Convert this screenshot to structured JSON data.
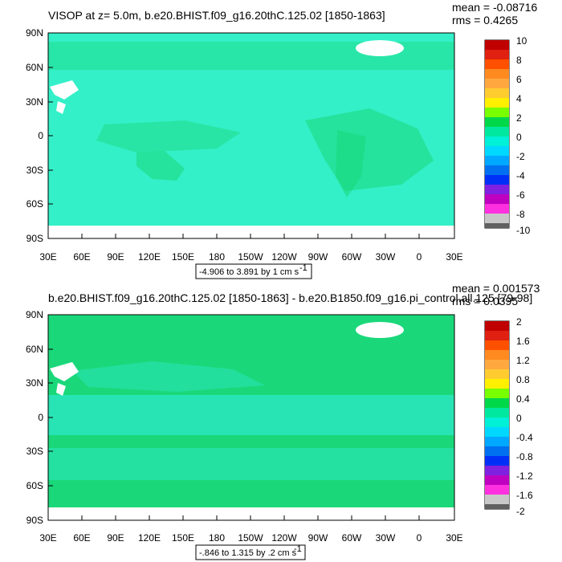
{
  "colors": {
    "frame": "#000000",
    "land": "#ffffff",
    "ocean_top": "#33f0c8",
    "ocean_bottom": "#2ee8c8",
    "ocean_main_top": "#00f2b4",
    "ocean_green": "#1ad87a"
  },
  "chart_data": [
    {
      "type": "heatmap",
      "title": "VISOP at z=   5.0m, b.e20.BHIST.f09_g16.20thC.125.02 [1850-1863]",
      "stats": [
        "mean = -0.08716",
        "rms = 0.4265"
      ],
      "xticks": [
        "30E",
        "60E",
        "90E",
        "120E",
        "150E",
        "180",
        "150W",
        "120W",
        "90W",
        "60W",
        "30W",
        "0",
        "30E"
      ],
      "yticks": [
        "90N",
        "60N",
        "30N",
        "0",
        "30S",
        "60S",
        "90S"
      ],
      "range_label": "-4.906 to 3.891 by 1 cm s",
      "range_sup": "-1",
      "legend": {
        "labels": [
          "10",
          "8",
          "6",
          "4",
          "2",
          "0",
          "-2",
          "-4",
          "-6",
          "-8",
          "-10"
        ],
        "colors": [
          "#c00000",
          "#e02010",
          "#ff5000",
          "#ff8a20",
          "#ffa840",
          "#ffcc30",
          "#fff000",
          "#78ff00",
          "#00d84a",
          "#00e8a0",
          "#00f0d8",
          "#00d8ff",
          "#00a8ff",
          "#0070f0",
          "#0030f8",
          "#8020e0",
          "#c000c0",
          "#ff30e0",
          "#c8c8c8",
          "#606060"
        ]
      },
      "dominant_value_range": [
        -2,
        0
      ],
      "land_mask": true
    },
    {
      "type": "heatmap",
      "title": "b.e20.BHIST.f09_g16.20thC.125.02 [1850-1863] - b.e20.B1850.f09_g16.pi_control.all.125 [79-98]",
      "stats": [
        "mean = 0.001573",
        "rms = 0.0395"
      ],
      "xticks": [
        "30E",
        "60E",
        "90E",
        "120E",
        "150E",
        "180",
        "150W",
        "120W",
        "90W",
        "60W",
        "30W",
        "0",
        "30E"
      ],
      "yticks": [
        "90N",
        "60N",
        "30N",
        "0",
        "30S",
        "60S",
        "90S"
      ],
      "range_label": "-.846 to 1.315 by .2 cm s",
      "range_sup": "-1",
      "legend": {
        "labels": [
          "2",
          "1.6",
          "1.2",
          "0.8",
          "0.4",
          "0",
          "-0.4",
          "-0.8",
          "-1.2",
          "-1.6",
          "-2"
        ],
        "colors": [
          "#c00000",
          "#e02010",
          "#ff5000",
          "#ff8a20",
          "#ffa840",
          "#ffcc30",
          "#fff000",
          "#78ff00",
          "#00d84a",
          "#00e8a0",
          "#00f0d8",
          "#00d8ff",
          "#00a8ff",
          "#0070f0",
          "#0030f8",
          "#8020e0",
          "#c000c0",
          "#ff30e0",
          "#c8c8c8",
          "#606060"
        ]
      },
      "dominant_value_range": [
        -0.4,
        0.4
      ],
      "land_mask": true
    }
  ]
}
